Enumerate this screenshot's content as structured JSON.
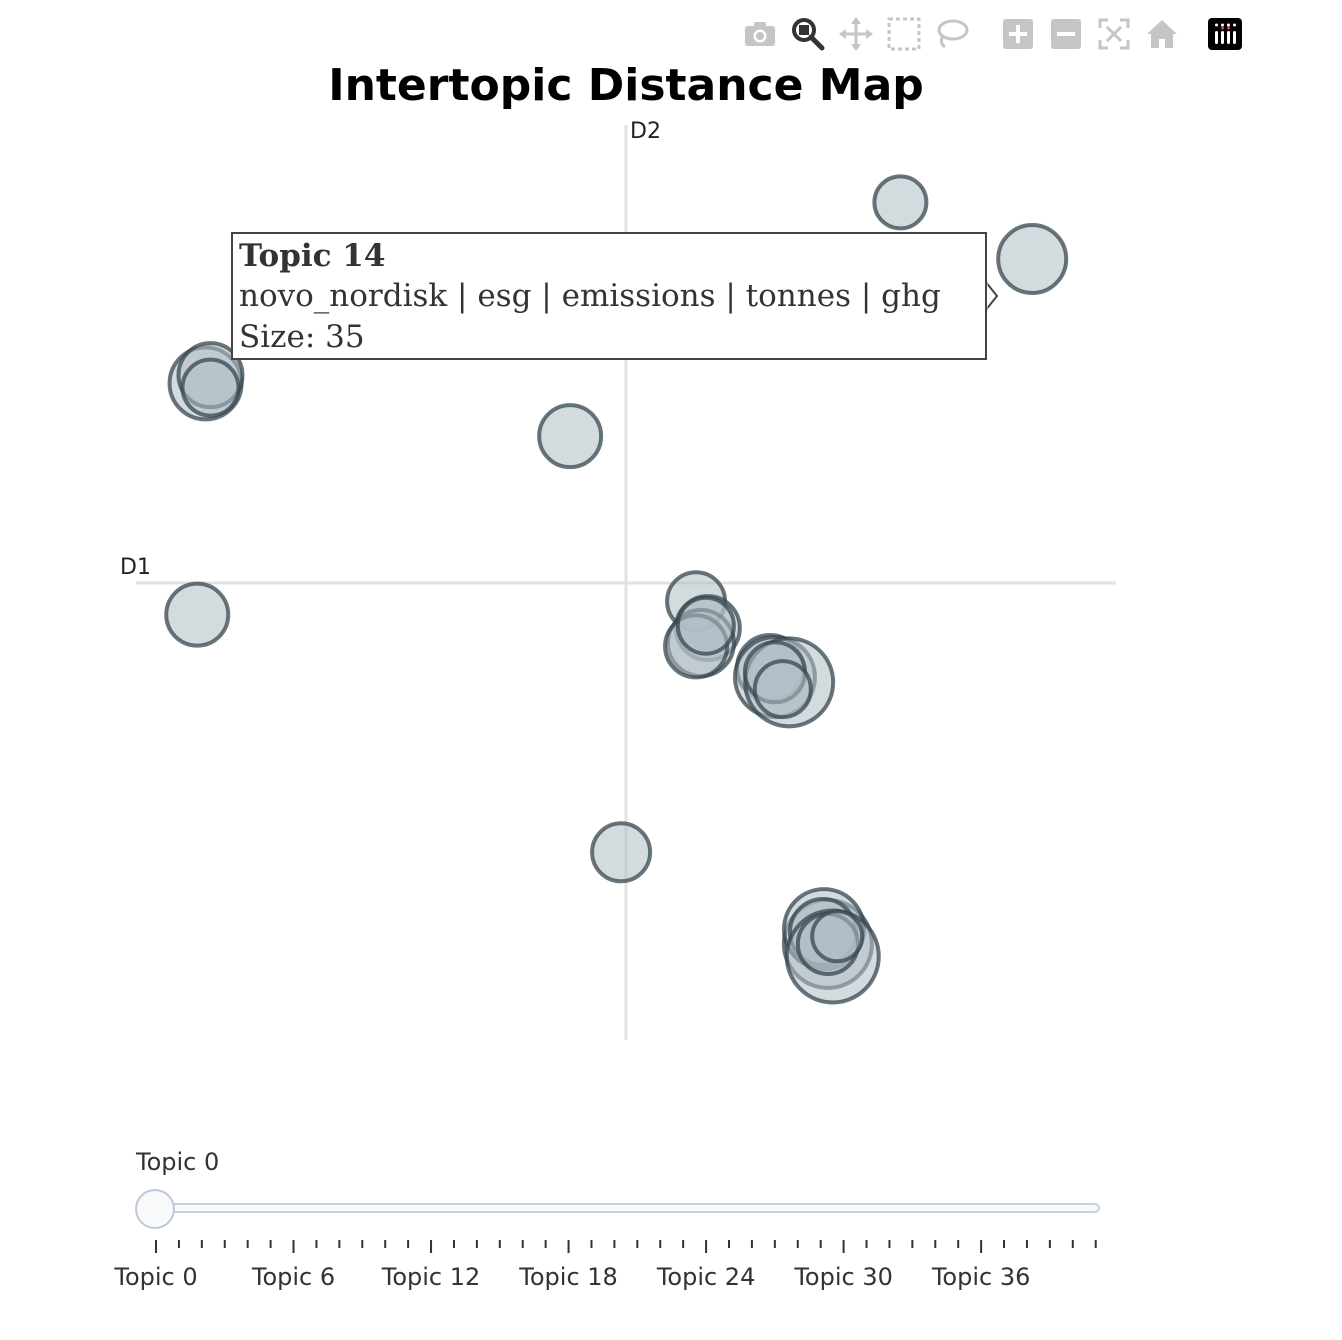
{
  "modebar": {
    "buttons": [
      "camera-icon",
      "zoom-icon",
      "pan-icon",
      "box-select-icon",
      "lasso-icon",
      "zoom-in-icon",
      "zoom-out-icon",
      "autoscale-icon",
      "home-icon"
    ],
    "active": "zoom-icon"
  },
  "chart_data": {
    "type": "scatter",
    "title": "Intertopic Distance Map",
    "xlabel": "D1",
    "ylabel": "D2",
    "marker_color": "#b0bec5",
    "marker_edge_color": "#37474f",
    "points": [
      {
        "x": 5.6,
        "y": 7.93,
        "size": 26
      },
      {
        "x": 8.29,
        "y": 6.75,
        "size": 34
      },
      {
        "x": -8.58,
        "y": 4.16,
        "size": 36
      },
      {
        "x": -8.48,
        "y": 4.33,
        "size": 32
      },
      {
        "x": -8.48,
        "y": 4.07,
        "size": 28
      },
      {
        "x": -1.14,
        "y": 3.06,
        "size": 31
      },
      {
        "x": -8.75,
        "y": -0.66,
        "size": 31
      },
      {
        "x": 1.43,
        "y": -0.38,
        "size": 29
      },
      {
        "x": 1.67,
        "y": -0.94,
        "size": 32
      },
      {
        "x": 1.53,
        "y": -1.25,
        "size": 33
      },
      {
        "x": 1.43,
        "y": -1.32,
        "size": 31
      },
      {
        "x": 1.63,
        "y": -0.89,
        "size": 28
      },
      {
        "x": 2.94,
        "y": -1.77,
        "size": 33
      },
      {
        "x": 3.04,
        "y": -1.96,
        "size": 40
      },
      {
        "x": 3.33,
        "y": -2.07,
        "size": 44
      },
      {
        "x": 3.04,
        "y": -1.86,
        "size": 30
      },
      {
        "x": 3.2,
        "y": -2.21,
        "size": 28
      },
      {
        "x": -0.1,
        "y": -5.61,
        "size": 29
      },
      {
        "x": 4.12,
        "y": -7.52,
        "size": 44
      },
      {
        "x": 4.04,
        "y": -7.21,
        "size": 40
      },
      {
        "x": 4.02,
        "y": -7.27,
        "size": 33
      },
      {
        "x": 4.22,
        "y": -7.78,
        "size": 46
      },
      {
        "x": 4.12,
        "y": -7.52,
        "size": 30
      },
      {
        "x": 4.31,
        "y": -7.36,
        "size": 25
      }
    ],
    "tooltip": {
      "title": "Topic 14",
      "words": "novo_nordisk | esg | emissions | tonnes | ghg",
      "size": "Size: 35"
    }
  },
  "slider": {
    "current_label": "Topic 0",
    "ticks": [
      "Topic 0",
      "Topic 6",
      "Topic 12",
      "Topic 18",
      "Topic 24",
      "Topic 30",
      "Topic 36"
    ],
    "value": 0
  }
}
